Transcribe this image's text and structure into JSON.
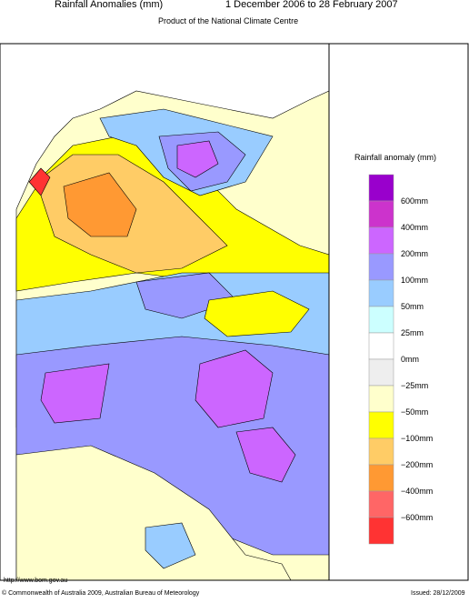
{
  "header": {
    "title": "Rainfall Anomalies (mm)",
    "period": "1 December 2006 to 28 February 2007",
    "subtitle": "Product of the National Climate Centre"
  },
  "legend": {
    "title": "Rainfall anomaly (mm)",
    "labels": [
      "600mm",
      "400mm",
      "200mm",
      "100mm",
      "50mm",
      "25mm",
      "0mm",
      "−25mm",
      "−50mm",
      "−100mm",
      "−200mm",
      "−400mm",
      "−600mm"
    ],
    "colors": [
      "#9900cc",
      "#cc33cc",
      "#cc66ff",
      "#9999ff",
      "#99ccff",
      "#ccffff",
      "#ffffff",
      "#eeeeee",
      "#ffffcc",
      "#ffff00",
      "#ffcc66",
      "#ff9933",
      "#ff6666",
      "#ff3333"
    ]
  },
  "footer": {
    "url": "http://www.bom.gov.au",
    "copyright": "© Commonwealth of Australia 2009, Australian Bureau of Meteorology",
    "issued": "Issued: 28/12/2009"
  }
}
